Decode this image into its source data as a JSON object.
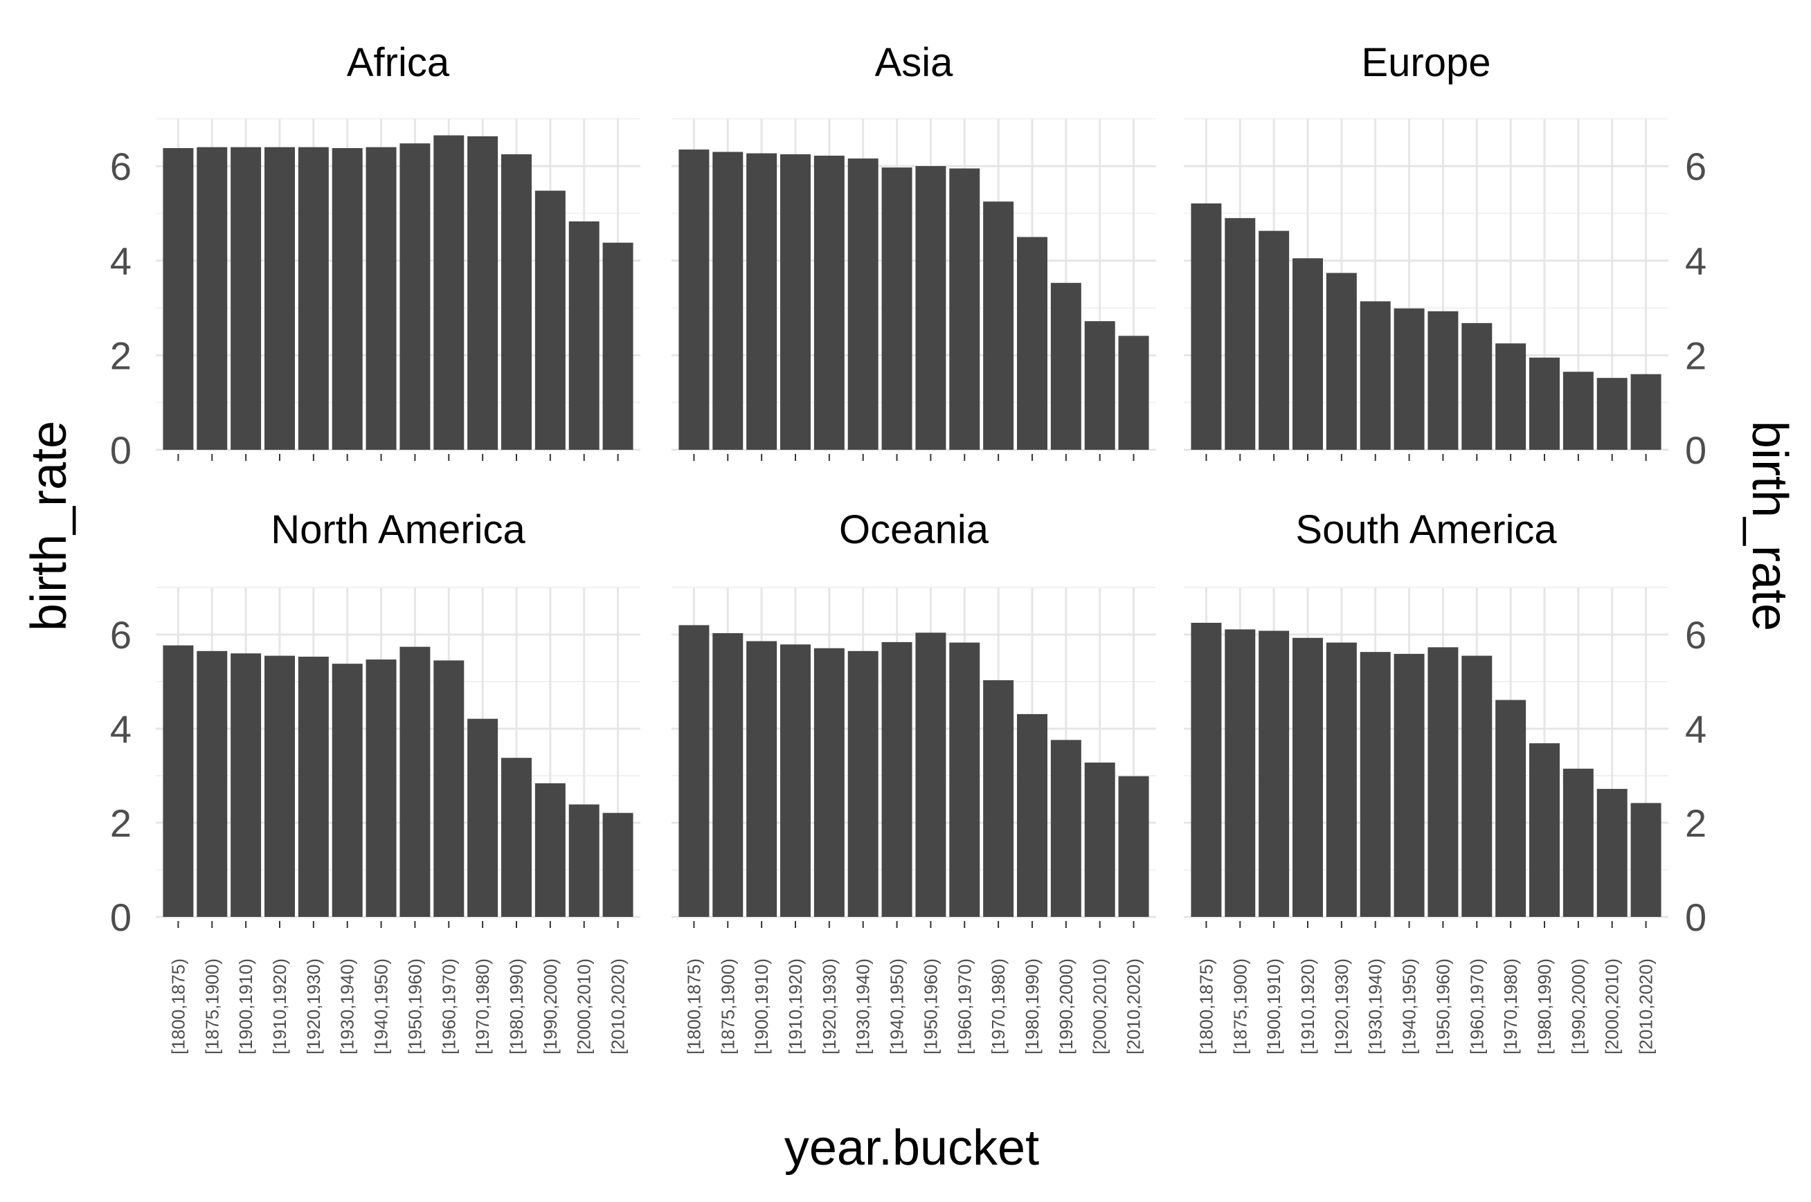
{
  "chart_data": {
    "type": "bar",
    "layout": "facet-wrap",
    "xlabel": "year.bucket",
    "ylabel_left": "birth_rate",
    "ylabel_right": "birth_rate",
    "ylim": [
      0,
      7
    ],
    "yticks": [
      0,
      2,
      4,
      6
    ],
    "grid": true,
    "categories": [
      "[1800,1875)",
      "[1875,1900)",
      "[1900,1910)",
      "[1910,1920)",
      "[1920,1930)",
      "[1930,1940)",
      "[1940,1950)",
      "[1950,1960)",
      "[1960,1970)",
      "[1970,1980)",
      "[1980,1990)",
      "[1990,2000)",
      "[2000,2010)",
      "[2010,2020)"
    ],
    "panels": [
      {
        "title": "Africa",
        "values": [
          6.38,
          6.4,
          6.4,
          6.4,
          6.4,
          6.38,
          6.4,
          6.48,
          6.65,
          6.63,
          6.25,
          5.48,
          4.83,
          4.38
        ]
      },
      {
        "title": "Asia",
        "values": [
          6.35,
          6.3,
          6.27,
          6.25,
          6.22,
          6.16,
          5.97,
          6.0,
          5.95,
          5.25,
          4.5,
          3.53,
          2.72,
          2.41
        ]
      },
      {
        "title": "Europe",
        "values": [
          5.21,
          4.9,
          4.63,
          4.05,
          3.74,
          3.14,
          2.99,
          2.93,
          2.68,
          2.25,
          1.95,
          1.65,
          1.52,
          1.6
        ]
      },
      {
        "title": "North America",
        "values": [
          5.77,
          5.65,
          5.6,
          5.55,
          5.53,
          5.38,
          5.47,
          5.74,
          5.45,
          4.21,
          3.38,
          2.84,
          2.39,
          2.21
        ]
      },
      {
        "title": "Oceania",
        "values": [
          6.2,
          6.03,
          5.86,
          5.79,
          5.71,
          5.65,
          5.84,
          6.04,
          5.83,
          5.03,
          4.31,
          3.76,
          3.28,
          2.99
        ]
      },
      {
        "title": "South America",
        "values": [
          6.25,
          6.11,
          6.08,
          5.93,
          5.83,
          5.63,
          5.59,
          5.73,
          5.55,
          4.61,
          3.69,
          3.15,
          2.72,
          2.42
        ]
      }
    ]
  },
  "colors": {
    "bar": "#474747",
    "grid_major": "#e6e6e6",
    "grid_minor": "#f1f1f1",
    "text": "#000000",
    "tick_text": "#4d4d4d",
    "background": "#ffffff"
  }
}
